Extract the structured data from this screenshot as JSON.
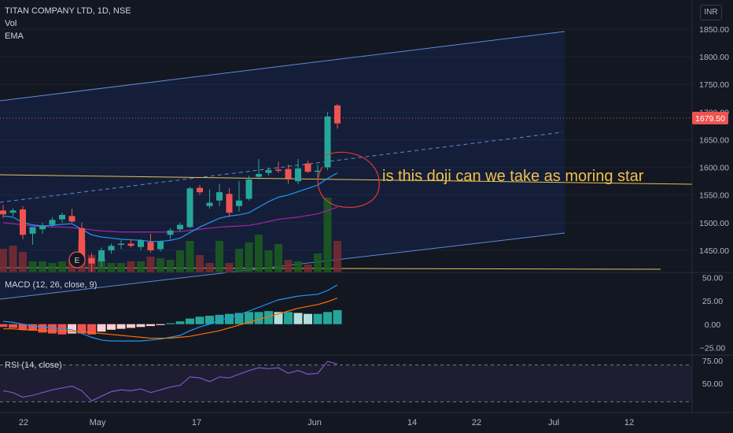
{
  "header": {
    "symbol_line": "TITAN COMPANY LTD, 1D, NSE",
    "vol_label": "Vol",
    "ema_label": "EMA",
    "currency": "INR"
  },
  "annotation": {
    "text": "is this doji can we take as moring star",
    "color": "#f0c04a",
    "marker": "E"
  },
  "colors": {
    "up": "#26a69a",
    "down": "#ef5350",
    "channel": "#2962ff",
    "horizontal": "#e6c15a",
    "ema": "#2196f3",
    "sma": "#9c27b0",
    "macd": "#2196f3",
    "signal": "#ff6d00",
    "rsi": "#7e57c2"
  },
  "chart_data": [
    {
      "type": "candlestick",
      "title": "TITAN COMPANY LTD, 1D, NSE",
      "ylim": [
        1410,
        1860
      ],
      "y_ticks": [
        "1850.00",
        "1800.00",
        "1750.00",
        "1700.00",
        "1650.00",
        "1600.00",
        "1550.00",
        "1500.00",
        "1450.00"
      ],
      "last_price": "1679.50",
      "x_labels": [
        "22",
        "May",
        "17",
        "Jun",
        "14",
        "22",
        "Jul",
        "12"
      ],
      "candles": [
        {
          "o": 1522,
          "h": 1532,
          "l": 1508,
          "c": 1515
        },
        {
          "o": 1518,
          "h": 1526,
          "l": 1512,
          "c": 1522
        },
        {
          "o": 1524,
          "h": 1530,
          "l": 1470,
          "c": 1478
        },
        {
          "o": 1480,
          "h": 1490,
          "l": 1460,
          "c": 1492
        },
        {
          "o": 1488,
          "h": 1500,
          "l": 1480,
          "c": 1495
        },
        {
          "o": 1496,
          "h": 1510,
          "l": 1492,
          "c": 1505
        },
        {
          "o": 1506,
          "h": 1518,
          "l": 1500,
          "c": 1514
        },
        {
          "o": 1512,
          "h": 1525,
          "l": 1500,
          "c": 1502
        },
        {
          "o": 1490,
          "h": 1500,
          "l": 1420,
          "c": 1436
        },
        {
          "o": 1436,
          "h": 1445,
          "l": 1410,
          "c": 1426
        },
        {
          "o": 1430,
          "h": 1455,
          "l": 1420,
          "c": 1450
        },
        {
          "o": 1450,
          "h": 1462,
          "l": 1444,
          "c": 1458
        },
        {
          "o": 1460,
          "h": 1468,
          "l": 1452,
          "c": 1462
        },
        {
          "o": 1462,
          "h": 1470,
          "l": 1455,
          "c": 1458
        },
        {
          "o": 1456,
          "h": 1470,
          "l": 1450,
          "c": 1468
        },
        {
          "o": 1465,
          "h": 1480,
          "l": 1446,
          "c": 1450
        },
        {
          "o": 1452,
          "h": 1468,
          "l": 1448,
          "c": 1466
        },
        {
          "o": 1478,
          "h": 1490,
          "l": 1470,
          "c": 1486
        },
        {
          "o": 1488,
          "h": 1500,
          "l": 1484,
          "c": 1496
        },
        {
          "o": 1492,
          "h": 1565,
          "l": 1490,
          "c": 1562
        },
        {
          "o": 1563,
          "h": 1568,
          "l": 1550,
          "c": 1555
        },
        {
          "o": 1530,
          "h": 1560,
          "l": 1525,
          "c": 1536
        },
        {
          "o": 1540,
          "h": 1570,
          "l": 1530,
          "c": 1555
        },
        {
          "o": 1552,
          "h": 1562,
          "l": 1510,
          "c": 1518
        },
        {
          "o": 1530,
          "h": 1575,
          "l": 1520,
          "c": 1540
        },
        {
          "o": 1543,
          "h": 1585,
          "l": 1540,
          "c": 1578
        },
        {
          "o": 1583,
          "h": 1615,
          "l": 1578,
          "c": 1588
        },
        {
          "o": 1590,
          "h": 1600,
          "l": 1585,
          "c": 1595
        },
        {
          "o": 1596,
          "h": 1610,
          "l": 1590,
          "c": 1595
        },
        {
          "o": 1597,
          "h": 1605,
          "l": 1570,
          "c": 1580
        },
        {
          "o": 1575,
          "h": 1615,
          "l": 1570,
          "c": 1598
        },
        {
          "o": 1607,
          "h": 1612,
          "l": 1590,
          "c": 1592
        },
        {
          "o": 1592,
          "h": 1605,
          "l": 1580,
          "c": 1594
        },
        {
          "o": 1600,
          "h": 1700,
          "l": 1595,
          "c": 1692
        },
        {
          "o": 1712,
          "h": 1715,
          "l": 1670,
          "c": 1679.5
        }
      ],
      "ema": [
        1512,
        1510,
        1500,
        1496,
        1494,
        1495,
        1497,
        1498,
        1488,
        1478,
        1474,
        1472,
        1470,
        1469,
        1468,
        1466,
        1466,
        1468,
        1472,
        1482,
        1492,
        1500,
        1508,
        1512,
        1514,
        1518,
        1528,
        1538,
        1546,
        1550,
        1556,
        1562,
        1568,
        1580,
        1590
      ],
      "sma": [
        1500,
        1498,
        1496,
        1494,
        1493,
        1492,
        1492,
        1491,
        1489,
        1487,
        1485,
        1484,
        1483,
        1483,
        1483,
        1483,
        1483,
        1483,
        1484,
        1486,
        1488,
        1490,
        1492,
        1493,
        1494,
        1495,
        1498,
        1502,
        1506,
        1508,
        1510,
        1513,
        1516,
        1522,
        1528
      ],
      "volume": [
        {
          "v": 30,
          "up": false
        },
        {
          "v": 34,
          "up": false
        },
        {
          "v": 26,
          "up": false
        },
        {
          "v": 14,
          "up": true
        },
        {
          "v": 14,
          "up": true
        },
        {
          "v": 12,
          "up": true
        },
        {
          "v": 14,
          "up": true
        },
        {
          "v": 16,
          "up": false
        },
        {
          "v": 40,
          "up": false
        },
        {
          "v": 22,
          "up": false
        },
        {
          "v": 18,
          "up": true
        },
        {
          "v": 12,
          "up": true
        },
        {
          "v": 12,
          "up": true
        },
        {
          "v": 14,
          "up": false
        },
        {
          "v": 14,
          "up": true
        },
        {
          "v": 20,
          "up": false
        },
        {
          "v": 18,
          "up": true
        },
        {
          "v": 16,
          "up": true
        },
        {
          "v": 28,
          "up": true
        },
        {
          "v": 40,
          "up": true
        },
        {
          "v": 22,
          "up": false
        },
        {
          "v": 12,
          "up": false
        },
        {
          "v": 40,
          "up": true
        },
        {
          "v": 12,
          "up": false
        },
        {
          "v": 30,
          "up": true
        },
        {
          "v": 38,
          "up": true
        },
        {
          "v": 48,
          "up": true
        },
        {
          "v": 28,
          "up": true
        },
        {
          "v": 36,
          "up": true
        },
        {
          "v": 16,
          "up": false
        },
        {
          "v": 14,
          "up": true
        },
        {
          "v": 10,
          "up": false
        },
        {
          "v": 24,
          "up": true
        },
        {
          "v": 95,
          "up": true
        },
        {
          "v": 40,
          "up": false
        }
      ]
    },
    {
      "type": "macd",
      "title": "MACD (12, 26, close, 9)",
      "ylim": [
        -28,
        52
      ],
      "y_ticks": [
        "50.00",
        "25.00",
        "0.00",
        "−25.00"
      ],
      "macd": [
        3,
        2,
        0,
        -2,
        -3,
        -4,
        -5,
        -6,
        -10,
        -14,
        -17,
        -18,
        -18,
        -18,
        -18,
        -17,
        -16,
        -14,
        -12,
        -7,
        -3,
        0,
        4,
        7,
        10,
        14,
        18,
        22,
        26,
        28,
        30,
        31,
        32,
        36,
        42
      ],
      "signal": [
        -5,
        -5,
        -6,
        -6,
        -7,
        -7,
        -7,
        -8,
        -8,
        -9,
        -10,
        -11,
        -12,
        -13,
        -14,
        -15,
        -15,
        -15,
        -14,
        -13,
        -11,
        -9,
        -7,
        -4,
        -1,
        2,
        5,
        8,
        11,
        14,
        17,
        19,
        21,
        24,
        28
      ],
      "histogram": [
        -3,
        -4,
        -6,
        -7,
        -9,
        -10,
        -11,
        -10,
        -10,
        -11,
        -8,
        -6,
        -5,
        -4,
        -3,
        -2,
        -1,
        1,
        3,
        6,
        8,
        9,
        10,
        11,
        12,
        13,
        13,
        14,
        13,
        13,
        12,
        11,
        11,
        13,
        15
      ]
    },
    {
      "type": "rsi",
      "title": "RSI (14, close)",
      "ylim": [
        20,
        80
      ],
      "y_ticks": [
        "75.00",
        "50.00"
      ],
      "rsi": [
        42,
        40,
        35,
        37,
        40,
        43,
        45,
        47,
        42,
        31,
        36,
        41,
        43,
        42,
        44,
        40,
        43,
        46,
        48,
        57,
        56,
        52,
        57,
        56,
        60,
        64,
        67,
        66,
        67,
        61,
        64,
        60,
        61,
        74,
        71
      ]
    }
  ]
}
